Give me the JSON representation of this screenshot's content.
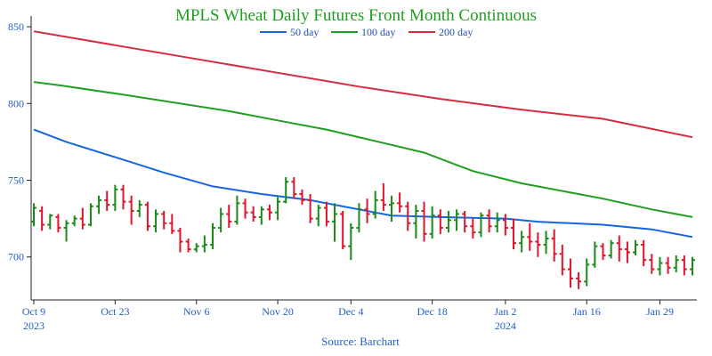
{
  "chart_data": {
    "type": "ohlc+line",
    "title": "MPLS Wheat Daily Futures Front Month Continuous",
    "source": "Source: Barchart",
    "ylim": [
      672,
      857
    ],
    "y_ticks": [
      700,
      750,
      800,
      850
    ],
    "x_index_range": [
      0,
      81
    ],
    "x_ticks": [
      {
        "i": 0,
        "label": "Oct 9",
        "year": "2023"
      },
      {
        "i": 10,
        "label": "Oct 23",
        "year": ""
      },
      {
        "i": 20,
        "label": "Nov 6",
        "year": ""
      },
      {
        "i": 30,
        "label": "Nov 20",
        "year": ""
      },
      {
        "i": 39,
        "label": "Dec 4",
        "year": ""
      },
      {
        "i": 49,
        "label": "Dec 18",
        "year": ""
      },
      {
        "i": 58,
        "label": "Jan 2",
        "year": "2024"
      },
      {
        "i": 68,
        "label": "Jan 16",
        "year": ""
      },
      {
        "i": 77,
        "label": "Jan 29",
        "year": ""
      }
    ],
    "legend": {
      "placement": "top-center"
    },
    "series": [
      {
        "name": "50 day",
        "color": "#1565e0",
        "points": [
          [
            0,
            783
          ],
          [
            4,
            775
          ],
          [
            10,
            765
          ],
          [
            16,
            755
          ],
          [
            22,
            746
          ],
          [
            28,
            741
          ],
          [
            34,
            737
          ],
          [
            40,
            731
          ],
          [
            44,
            727
          ],
          [
            50,
            726
          ],
          [
            58,
            725
          ],
          [
            62,
            723
          ],
          [
            70,
            721
          ],
          [
            76,
            718
          ],
          [
            81,
            713
          ]
        ]
      },
      {
        "name": "100 day",
        "color": "#1f9e1f",
        "points": [
          [
            0,
            814
          ],
          [
            3,
            812
          ],
          [
            12,
            805
          ],
          [
            24,
            795
          ],
          [
            30,
            789
          ],
          [
            36,
            783
          ],
          [
            44,
            773
          ],
          [
            48,
            768
          ],
          [
            54,
            756
          ],
          [
            60,
            748
          ],
          [
            70,
            738
          ],
          [
            76,
            731
          ],
          [
            81,
            726
          ]
        ]
      },
      {
        "name": "200 day",
        "color": "#d62b3f",
        "points": [
          [
            0,
            847
          ],
          [
            10,
            838
          ],
          [
            20,
            829
          ],
          [
            30,
            820
          ],
          [
            40,
            811
          ],
          [
            50,
            803
          ],
          [
            60,
            796
          ],
          [
            70,
            790
          ],
          [
            81,
            778
          ]
        ]
      }
    ],
    "ohlc": [
      [
        723,
        735,
        720,
        732
      ],
      [
        730,
        733,
        717,
        721
      ],
      [
        721,
        728,
        718,
        727
      ],
      [
        726,
        728,
        716,
        719
      ],
      [
        719,
        724,
        710,
        722
      ],
      [
        722,
        727,
        720,
        725
      ],
      [
        725,
        732,
        718,
        721
      ],
      [
        721,
        735,
        720,
        733
      ],
      [
        733,
        740,
        728,
        737
      ],
      [
        737,
        743,
        730,
        734
      ],
      [
        734,
        747,
        730,
        744
      ],
      [
        744,
        747,
        731,
        736
      ],
      [
        736,
        740,
        721,
        730
      ],
      [
        730,
        737,
        726,
        734
      ],
      [
        734,
        736,
        717,
        720
      ],
      [
        720,
        731,
        716,
        728
      ],
      [
        728,
        730,
        718,
        722
      ],
      [
        722,
        728,
        715,
        717
      ],
      [
        717,
        719,
        703,
        710
      ],
      [
        710,
        712,
        703,
        705
      ],
      [
        705,
        709,
        703,
        707
      ],
      [
        707,
        714,
        703,
        708
      ],
      [
        708,
        722,
        705,
        719
      ],
      [
        719,
        732,
        716,
        728
      ],
      [
        728,
        734,
        719,
        723
      ],
      [
        723,
        740,
        721,
        735
      ],
      [
        735,
        738,
        725,
        729
      ],
      [
        729,
        733,
        723,
        726
      ],
      [
        726,
        733,
        721,
        731
      ],
      [
        731,
        734,
        724,
        729
      ],
      [
        729,
        739,
        724,
        736
      ],
      [
        736,
        752,
        735,
        749
      ],
      [
        749,
        752,
        738,
        741
      ],
      [
        741,
        744,
        734,
        737
      ],
      [
        737,
        741,
        722,
        725
      ],
      [
        725,
        734,
        720,
        732
      ],
      [
        732,
        736,
        720,
        723
      ],
      [
        723,
        735,
        710,
        728
      ],
      [
        728,
        730,
        705,
        707
      ],
      [
        707,
        722,
        698,
        719
      ],
      [
        719,
        735,
        716,
        731
      ],
      [
        731,
        738,
        722,
        728
      ],
      [
        728,
        743,
        725,
        737
      ],
      [
        737,
        748,
        730,
        734
      ],
      [
        734,
        740,
        723,
        735
      ],
      [
        735,
        742,
        729,
        733
      ],
      [
        733,
        736,
        717,
        722
      ],
      [
        722,
        734,
        712,
        730
      ],
      [
        730,
        736,
        710,
        715
      ],
      [
        715,
        733,
        712,
        727
      ],
      [
        727,
        731,
        715,
        719
      ],
      [
        719,
        730,
        716,
        724
      ],
      [
        724,
        731,
        717,
        728
      ],
      [
        728,
        730,
        716,
        720
      ],
      [
        720,
        725,
        712,
        716
      ],
      [
        716,
        729,
        713,
        727
      ],
      [
        727,
        731,
        716,
        720
      ],
      [
        720,
        729,
        716,
        724
      ],
      [
        724,
        728,
        714,
        719
      ],
      [
        719,
        725,
        705,
        709
      ],
      [
        709,
        717,
        703,
        713
      ],
      [
        713,
        722,
        704,
        710
      ],
      [
        710,
        716,
        700,
        708
      ],
      [
        708,
        717,
        702,
        712
      ],
      [
        712,
        718,
        697,
        702
      ],
      [
        702,
        708,
        688,
        692
      ],
      [
        692,
        699,
        680,
        686
      ],
      [
        686,
        690,
        679,
        684
      ],
      [
        684,
        699,
        681,
        695
      ],
      [
        695,
        710,
        693,
        707
      ],
      [
        707,
        709,
        698,
        701
      ],
      [
        701,
        711,
        699,
        709
      ],
      [
        709,
        714,
        697,
        705
      ],
      [
        705,
        710,
        696,
        703
      ],
      [
        703,
        711,
        701,
        708
      ],
      [
        708,
        711,
        694,
        698
      ],
      [
        698,
        702,
        689,
        692
      ],
      [
        692,
        700,
        688,
        696
      ],
      [
        696,
        700,
        689,
        693
      ],
      [
        693,
        701,
        690,
        698
      ],
      [
        698,
        701,
        688,
        692
      ],
      [
        692,
        700,
        688,
        698
      ]
    ]
  }
}
